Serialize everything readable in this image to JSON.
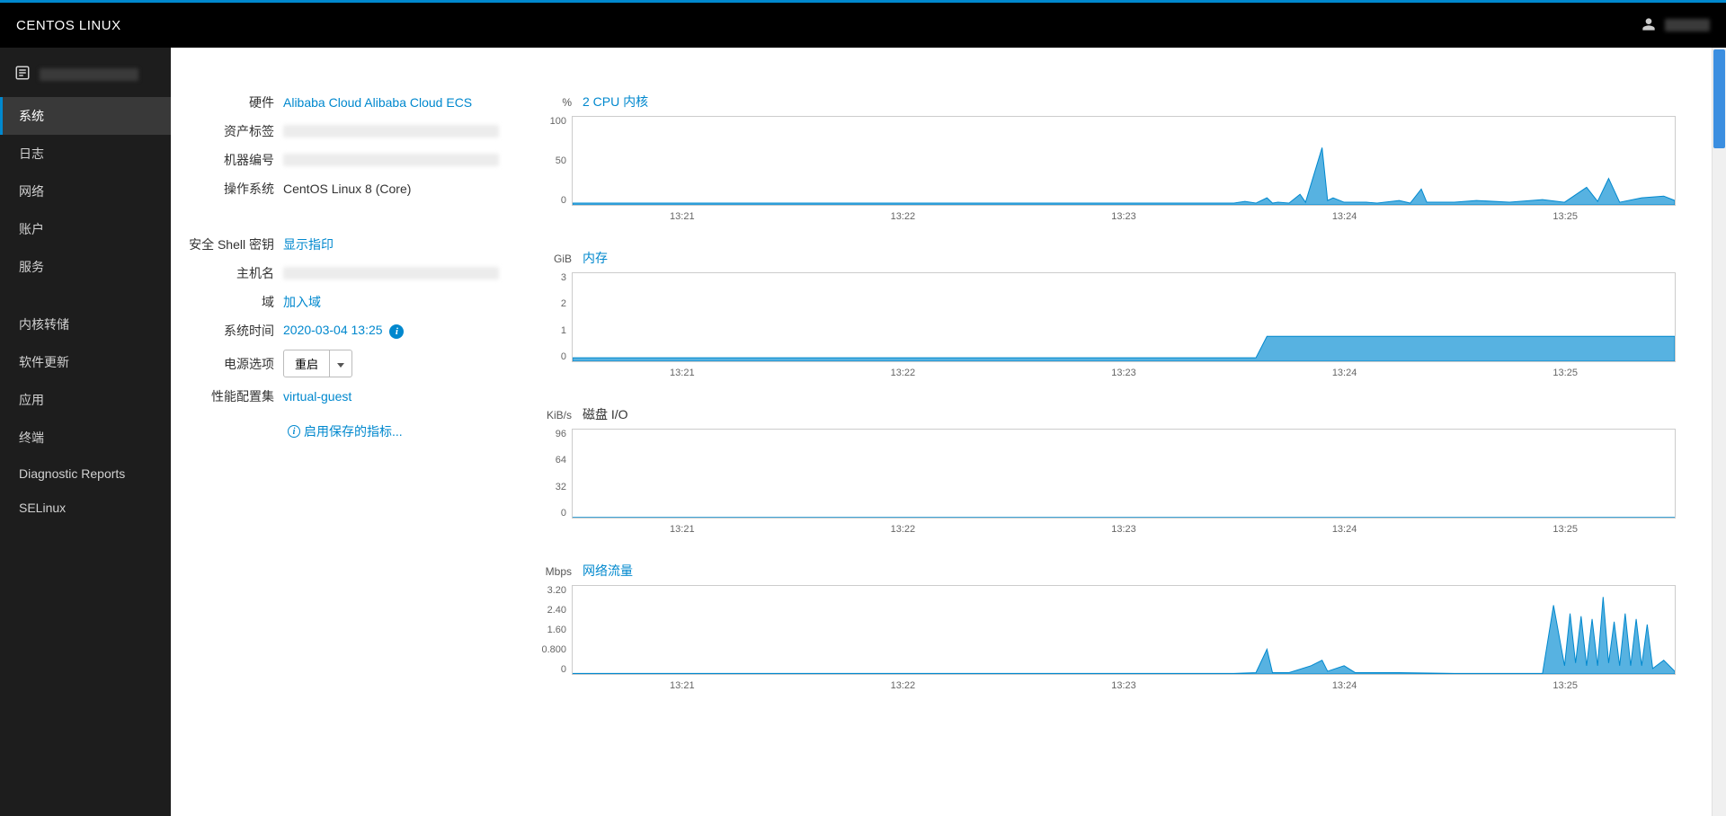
{
  "header": {
    "brand": "CENTOS LINUX"
  },
  "sidebar": {
    "items": [
      {
        "label": "系统",
        "active": true
      },
      {
        "label": "日志"
      },
      {
        "label": "网络"
      },
      {
        "label": "账户"
      },
      {
        "label": "服务"
      },
      {
        "spacer": true
      },
      {
        "label": "内核转储"
      },
      {
        "label": "软件更新"
      },
      {
        "label": "应用"
      },
      {
        "label": "终端"
      },
      {
        "label": "Diagnostic Reports"
      },
      {
        "label": "SELinux"
      }
    ]
  },
  "info": {
    "rows1": [
      {
        "label": "硬件",
        "value": "Alibaba Cloud Alibaba Cloud ECS",
        "link": true
      },
      {
        "label": "资产标签",
        "blur": true
      },
      {
        "label": "机器编号",
        "blur": true
      },
      {
        "label": "操作系统",
        "value": "CentOS Linux 8 (Core)"
      }
    ],
    "rows2": [
      {
        "label": "安全 Shell 密钥",
        "value": "显示指印",
        "link": true
      },
      {
        "label": "主机名",
        "blur": true
      },
      {
        "label": "域",
        "value": "加入域",
        "link": true
      },
      {
        "label": "系统时间",
        "value": "2020-03-04 13:25",
        "link": true,
        "info_icon": true
      },
      {
        "label": "电源选项",
        "button": "重启"
      },
      {
        "label": "性能配置集",
        "value": "virtual-guest",
        "link": true
      }
    ],
    "metrics_link": "启用保存的指标..."
  },
  "charts": [
    {
      "id": "cpu",
      "unit": "%",
      "title": "2 CPU 内核",
      "title_link": true,
      "ylim": [
        0,
        100
      ],
      "yticks": [
        "100",
        "50",
        "0"
      ],
      "xticks": [
        "13:21",
        "13:22",
        "13:23",
        "13:24",
        "13:25"
      ],
      "height": 100,
      "type": "area",
      "fill": "#39a5dc",
      "stroke": "#0088ce",
      "border": "#ccc",
      "bg": "#ffffff",
      "points": [
        [
          0,
          2
        ],
        [
          60,
          2
        ],
        [
          61,
          4
        ],
        [
          62,
          2
        ],
        [
          63,
          8
        ],
        [
          63.5,
          2
        ],
        [
          64,
          3
        ],
        [
          65,
          2
        ],
        [
          66,
          12
        ],
        [
          66.5,
          3
        ],
        [
          68,
          65
        ],
        [
          68.5,
          5
        ],
        [
          69,
          8
        ],
        [
          70,
          3
        ],
        [
          72,
          3
        ],
        [
          73,
          2
        ],
        [
          75,
          5
        ],
        [
          76,
          2
        ],
        [
          77,
          18
        ],
        [
          77.5,
          3
        ],
        [
          80,
          3
        ],
        [
          82,
          5
        ],
        [
          85,
          3
        ],
        [
          88,
          6
        ],
        [
          90,
          3
        ],
        [
          92,
          20
        ],
        [
          93,
          4
        ],
        [
          94,
          30
        ],
        [
          95,
          3
        ],
        [
          97,
          8
        ],
        [
          99,
          10
        ],
        [
          100,
          5
        ]
      ]
    },
    {
      "id": "memory",
      "unit": "GiB",
      "title": "内存",
      "title_link": true,
      "ylim": [
        0,
        3
      ],
      "yticks": [
        "3",
        "2",
        "1",
        "0"
      ],
      "xticks": [
        "13:21",
        "13:22",
        "13:23",
        "13:24",
        "13:25"
      ],
      "height": 100,
      "type": "area",
      "fill": "#39a5dc",
      "stroke": "#0088ce",
      "border": "#ccc",
      "bg": "#ffffff",
      "points": [
        [
          0,
          0.12
        ],
        [
          62,
          0.12
        ],
        [
          63,
          0.85
        ],
        [
          100,
          0.85
        ]
      ]
    },
    {
      "id": "disk",
      "unit": "KiB/s",
      "title": "磁盘 I/O",
      "title_link": false,
      "ylim": [
        0,
        96
      ],
      "yticks": [
        "96",
        "64",
        "32",
        "0"
      ],
      "xticks": [
        "13:21",
        "13:22",
        "13:23",
        "13:24",
        "13:25"
      ],
      "height": 100,
      "type": "line",
      "fill": "none",
      "stroke": "#0088ce",
      "border": "#ccc",
      "bg": "#ffffff",
      "points": [
        [
          0,
          0
        ],
        [
          100,
          0
        ]
      ]
    },
    {
      "id": "network",
      "unit": "Mbps",
      "title": "网络流量",
      "title_link": true,
      "ylim": [
        0,
        3.2
      ],
      "yticks": [
        "3.20",
        "2.40",
        "1.60",
        "0.800",
        "0"
      ],
      "xticks": [
        "13:21",
        "13:22",
        "13:23",
        "13:24",
        "13:25"
      ],
      "height": 100,
      "type": "area",
      "fill": "#39a5dc",
      "stroke": "#0088ce",
      "border": "#ccc",
      "bg": "#ffffff",
      "points": [
        [
          0,
          0.02
        ],
        [
          60,
          0.02
        ],
        [
          62,
          0.05
        ],
        [
          63,
          0.9
        ],
        [
          63.5,
          0.05
        ],
        [
          65,
          0.05
        ],
        [
          67,
          0.3
        ],
        [
          68,
          0.5
        ],
        [
          68.5,
          0.1
        ],
        [
          70,
          0.3
        ],
        [
          71,
          0.05
        ],
        [
          75,
          0.05
        ],
        [
          80,
          0.02
        ],
        [
          88,
          0.02
        ],
        [
          89,
          2.5
        ],
        [
          90,
          0.3
        ],
        [
          90.5,
          2.2
        ],
        [
          91,
          0.4
        ],
        [
          91.5,
          2.1
        ],
        [
          92,
          0.3
        ],
        [
          92.5,
          2.0
        ],
        [
          93,
          0.3
        ],
        [
          93.5,
          2.8
        ],
        [
          94,
          0.4
        ],
        [
          94.5,
          1.9
        ],
        [
          95,
          0.3
        ],
        [
          95.5,
          2.2
        ],
        [
          96,
          0.3
        ],
        [
          96.5,
          2.0
        ],
        [
          97,
          0.3
        ],
        [
          97.5,
          1.8
        ],
        [
          98,
          0.2
        ],
        [
          99,
          0.5
        ],
        [
          100,
          0.1
        ]
      ]
    }
  ],
  "colors": {
    "accent": "#0088ce",
    "sidebar_bg": "#1d1d1d",
    "header_bg": "#000000"
  }
}
